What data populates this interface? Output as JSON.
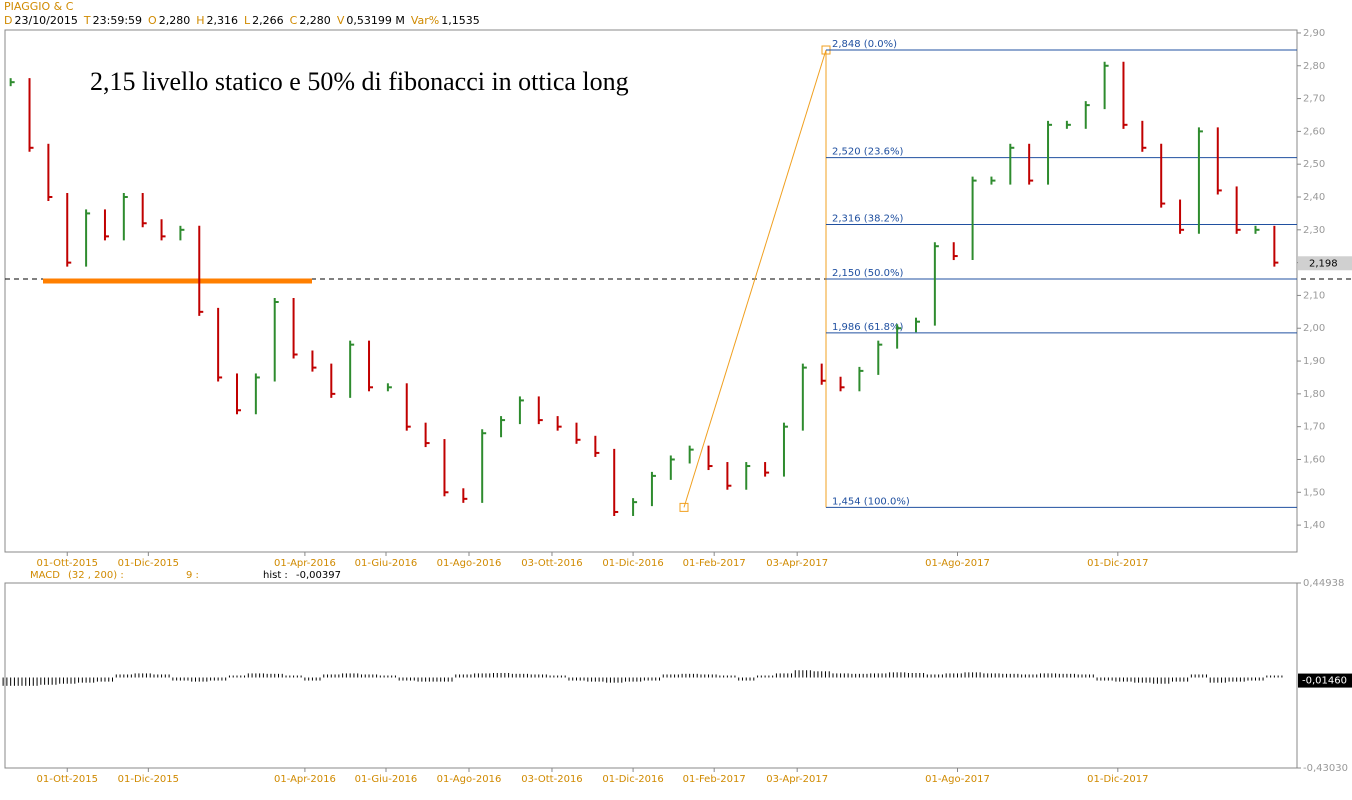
{
  "header": {
    "title": "PIAGGIO & C",
    "info": [
      [
        "D",
        "23/10/2015"
      ],
      [
        "T",
        "23:59:59"
      ],
      [
        "O",
        "2,280"
      ],
      [
        "H",
        "2,316"
      ],
      [
        "L",
        "2,266"
      ],
      [
        "C",
        "2,280"
      ],
      [
        "V",
        "0,53199 M"
      ],
      [
        "Var%",
        "1,1535"
      ]
    ]
  },
  "chart_data": [
    {
      "type": "bar",
      "annotation": "2,15 livello statico e 50% di fibonacci in ottica long",
      "series": [
        {
          "name": "PIAGGIO & C",
          "up_color": "#2e8b2e",
          "down_color": "#c00000",
          "values": [
            2.75,
            2.55,
            2.4,
            2.2,
            2.35,
            2.28,
            2.4,
            2.32,
            2.28,
            2.3,
            2.05,
            1.85,
            1.75,
            1.85,
            2.08,
            1.92,
            1.88,
            1.8,
            1.95,
            1.82,
            1.82,
            1.7,
            1.65,
            1.5,
            1.48,
            1.68,
            1.72,
            1.78,
            1.72,
            1.7,
            1.66,
            1.62,
            1.44,
            1.47,
            1.55,
            1.6,
            1.63,
            1.58,
            1.52,
            1.58,
            1.56,
            1.7,
            1.88,
            1.84,
            1.82,
            1.87,
            1.95,
            2.0,
            2.02,
            2.25,
            2.22,
            2.45,
            2.45,
            2.55,
            2.45,
            2.62,
            2.62,
            2.68,
            2.8,
            2.62,
            2.55,
            2.38,
            2.3,
            2.6,
            2.42,
            2.3,
            2.3,
            2.2
          ]
        }
      ],
      "xlim": [
        -0.3,
        68.2
      ],
      "xticks": [
        {
          "value": 3.0,
          "label": "01-Ott-2015"
        },
        {
          "value": 7.3,
          "label": "01-Dic-2015"
        },
        {
          "value": 15.6,
          "label": "01-Apr-2016"
        },
        {
          "value": 19.9,
          "label": "01-Giu-2016"
        },
        {
          "value": 24.3,
          "label": "01-Ago-2016"
        },
        {
          "value": 28.7,
          "label": "03-Ott-2016"
        },
        {
          "value": 33.0,
          "label": "01-Dic-2016"
        },
        {
          "value": 37.3,
          "label": "01-Feb-2017"
        },
        {
          "value": 41.7,
          "label": "03-Apr-2017"
        },
        {
          "value": 50.2,
          "label": "01-Ago-2017"
        },
        {
          "value": 58.7,
          "label": "01-Dic-2017"
        }
      ],
      "ylim": [
        1.318,
        2.909
      ],
      "yticks": [
        {
          "value": 2.9,
          "label": "2,90"
        },
        {
          "value": 2.8,
          "label": "2,80"
        },
        {
          "value": 2.7,
          "label": "2,70"
        },
        {
          "value": 2.6,
          "label": "2,60"
        },
        {
          "value": 2.5,
          "label": "2,50"
        },
        {
          "value": 2.4,
          "label": "2,40"
        },
        {
          "value": 2.3,
          "label": "2,30"
        },
        {
          "value": 2.2,
          "label": "2,20"
        },
        {
          "value": 2.1,
          "label": "2,10"
        },
        {
          "value": 2.0,
          "label": "2,00"
        },
        {
          "value": 1.9,
          "label": "1,90"
        },
        {
          "value": 1.8,
          "label": "1,80"
        },
        {
          "value": 1.7,
          "label": "1,70"
        },
        {
          "value": 1.6,
          "label": "1,60"
        },
        {
          "value": 1.5,
          "label": "1,50"
        },
        {
          "value": 1.4,
          "label": "1,40"
        }
      ],
      "fib_levels": [
        {
          "value": 2.848,
          "label": "2,848 (0.0%)"
        },
        {
          "value": 2.52,
          "label": "2,520 (23.6%)"
        },
        {
          "value": 2.316,
          "label": "2,316 (38.2%)"
        },
        {
          "value": 2.15,
          "label": "2,150 (50.0%)"
        },
        {
          "value": 1.986,
          "label": "1,986 (61.8%)"
        },
        {
          "value": 1.454,
          "label": "1,454 (100.0%)"
        }
      ],
      "fib_color": "#2050a0",
      "static_level": 2.15,
      "static_color": "#ff7f00",
      "price_label": {
        "value": 2.198,
        "label": "2,198"
      }
    },
    {
      "type": "histogram",
      "title": "MACD",
      "params": "(32 , 200) :",
      "signal": "9 :",
      "hist_label": "hist :",
      "hist_value": "-0,00397",
      "values": [
        -0.03,
        -0.03,
        -0.025,
        -0.02,
        -0.015,
        -0.01,
        0.005,
        0.01,
        0.005,
        -0.005,
        -0.01,
        -0.005,
        0.0,
        0.01,
        0.008,
        0.0,
        -0.005,
        0.005,
        0.01,
        0.005,
        0.0,
        -0.005,
        -0.01,
        -0.01,
        0.005,
        0.01,
        0.012,
        0.008,
        0.005,
        0.0,
        -0.005,
        -0.01,
        -0.015,
        -0.01,
        -0.005,
        0.005,
        0.008,
        0.005,
        0.0,
        -0.005,
        0.0,
        0.01,
        0.025,
        0.02,
        0.01,
        0.008,
        0.01,
        0.015,
        0.012,
        0.005,
        0.01,
        0.015,
        0.01,
        0.008,
        0.005,
        0.01,
        0.008,
        0.005,
        -0.005,
        -0.01,
        -0.015,
        -0.02,
        -0.01,
        0.005,
        -0.015,
        -0.01,
        -0.005,
        0.0
      ],
      "color": "#000000",
      "xlim": [
        -0.3,
        68.2
      ],
      "xticks": [
        {
          "value": 3.0,
          "label": "01-Ott-2015"
        },
        {
          "value": 7.3,
          "label": "01-Dic-2015"
        },
        {
          "value": 15.6,
          "label": "01-Apr-2016"
        },
        {
          "value": 19.9,
          "label": "01-Giu-2016"
        },
        {
          "value": 24.3,
          "label": "01-Ago-2016"
        },
        {
          "value": 28.7,
          "label": "03-Ott-2016"
        },
        {
          "value": 33.0,
          "label": "01-Dic-2016"
        },
        {
          "value": 37.3,
          "label": "01-Feb-2017"
        },
        {
          "value": 41.7,
          "label": "03-Apr-2017"
        },
        {
          "value": 50.2,
          "label": "01-Ago-2017"
        },
        {
          "value": 58.7,
          "label": "01-Dic-2017"
        }
      ],
      "ylim": [
        -0.4303,
        0.44938
      ],
      "yticks": [
        {
          "value": 0.44938,
          "label": "0,44938"
        },
        {
          "value": -0.4303,
          "label": "-0,43030"
        }
      ],
      "last_label": {
        "value": -0.0146,
        "label": "-0,01460"
      }
    }
  ]
}
